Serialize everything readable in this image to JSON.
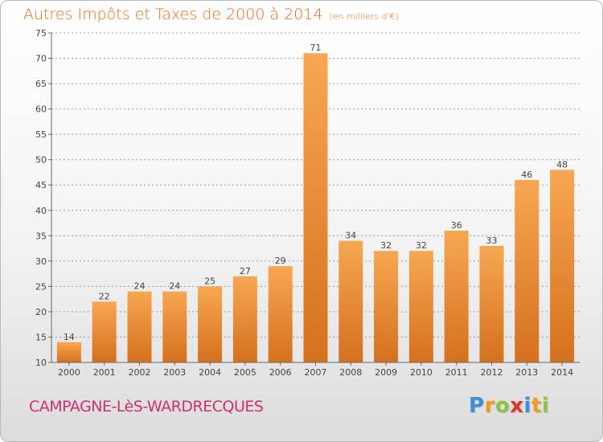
{
  "header": {
    "title": "Autres Impôts et Taxes de 2000 à 2014",
    "subtitle": "(en milliers d'€)"
  },
  "footer": {
    "place": "CAMPAGNE-LèS-WARDRECQUES",
    "logo_letters": [
      "P",
      "r",
      "o",
      "x",
      "i",
      "t",
      "i"
    ],
    "logo_colors": [
      "#3a8fd6",
      "#f39a1e",
      "#8bc43f",
      "#e5342a",
      "#3a8fd6",
      "#f39a1e",
      "#8bc43f"
    ]
  },
  "colors": {
    "bar_light": "#f7a752",
    "bar_dark": "#d5701e",
    "text": "#444444",
    "grid": "#9a9a9a",
    "accent": "#ef6a14",
    "place": "#cf2e74"
  },
  "chart_data": {
    "type": "bar",
    "categories": [
      "2000",
      "2001",
      "2002",
      "2003",
      "2004",
      "2005",
      "2006",
      "2007",
      "2008",
      "2009",
      "2010",
      "2011",
      "2012",
      "2013",
      "2014"
    ],
    "values": [
      14,
      22,
      24,
      24,
      25,
      27,
      29,
      71,
      34,
      32,
      32,
      36,
      33,
      46,
      48
    ],
    "ylim": [
      10,
      75
    ],
    "yticks": [
      10,
      15,
      20,
      25,
      30,
      35,
      40,
      45,
      50,
      55,
      60,
      65,
      70,
      75
    ],
    "grid": "horizontal dashed",
    "legend": "none"
  }
}
